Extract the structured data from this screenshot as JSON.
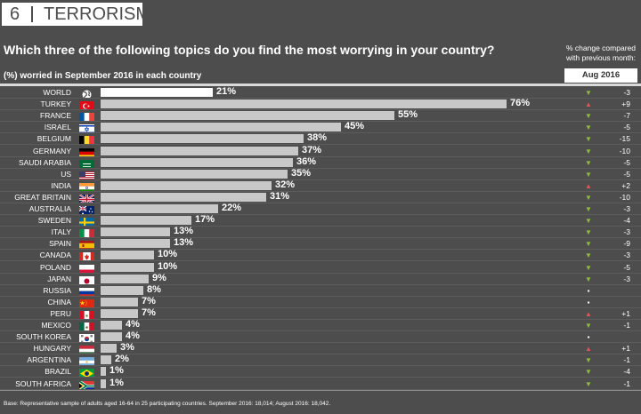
{
  "header": {
    "number": "6",
    "section": "TERRORISM"
  },
  "chart_data": {
    "type": "bar",
    "title": "Which three of the following topics do you find the most worrying in your country?",
    "subtitle": "(%) worried in September 2016 in each country",
    "change_title": "% change compared with previous month:",
    "change_period": "Aug 2016",
    "categories": [
      "WORLD",
      "TURKEY",
      "FRANCE",
      "ISRAEL",
      "BELGIUM",
      "GERMANY",
      "SAUDI ARABIA",
      "US",
      "INDIA",
      "GREAT BRITAIN",
      "AUSTRALIA",
      "SWEDEN",
      "ITALY",
      "SPAIN",
      "CANADA",
      "POLAND",
      "JAPAN",
      "RUSSIA",
      "CHINA",
      "PERU",
      "MEXICO",
      "SOUTH KOREA",
      "HUNGARY",
      "ARGENTINA",
      "BRAZIL",
      "SOUTH AFRICA"
    ],
    "values": [
      21,
      76,
      55,
      45,
      38,
      37,
      36,
      35,
      32,
      31,
      22,
      17,
      13,
      13,
      10,
      10,
      9,
      8,
      7,
      7,
      4,
      4,
      3,
      2,
      1,
      1
    ],
    "value_labels": [
      "21%",
      "76%",
      "55%",
      "45%",
      "38%",
      "37%",
      "36%",
      "35%",
      "32%",
      "31%",
      "22%",
      "17%",
      "13%",
      "13%",
      "10%",
      "10%",
      "9%",
      "8%",
      "7%",
      "7%",
      "4%",
      "4%",
      "3%",
      "2%",
      "1%",
      "1%"
    ],
    "change": [
      "-3",
      "+9",
      "-7",
      "-5",
      "-15",
      "-10",
      "-5",
      "-5",
      "+2",
      "-10",
      "-3",
      "-4",
      "-3",
      "-9",
      "-3",
      "-5",
      "-3",
      "",
      "",
      "+1",
      "-1",
      "",
      "+1",
      "-1",
      "-4",
      "-1"
    ],
    "direction": [
      "down",
      "up",
      "down",
      "down",
      "down",
      "down",
      "down",
      "down",
      "up",
      "down",
      "down",
      "down",
      "down",
      "down",
      "down",
      "down",
      "down",
      "flat",
      "flat",
      "up",
      "down",
      "flat",
      "up",
      "down",
      "down",
      "down"
    ],
    "xlim": [
      0,
      100
    ]
  },
  "footnote": "Base: Representative sample of adults aged 16-64 in 25 participating countries. September 2016: 18,014; August 2016: 18,042.",
  "colors": {
    "background": "#4d4d4d",
    "bar": "#c8c8c8",
    "world_bar": "#ffffff",
    "up": "#e05555",
    "down": "#8fbc3e",
    "flat": "#ffffff"
  },
  "flag_icons": [
    "globe-icon",
    "turkey-flag-icon",
    "france-flag-icon",
    "israel-flag-icon",
    "belgium-flag-icon",
    "germany-flag-icon",
    "saudi-arabia-flag-icon",
    "us-flag-icon",
    "india-flag-icon",
    "great-britain-flag-icon",
    "australia-flag-icon",
    "sweden-flag-icon",
    "italy-flag-icon",
    "spain-flag-icon",
    "canada-flag-icon",
    "poland-flag-icon",
    "japan-flag-icon",
    "russia-flag-icon",
    "china-flag-icon",
    "peru-flag-icon",
    "mexico-flag-icon",
    "south-korea-flag-icon",
    "hungary-flag-icon",
    "argentina-flag-icon",
    "brazil-flag-icon",
    "south-africa-flag-icon"
  ]
}
